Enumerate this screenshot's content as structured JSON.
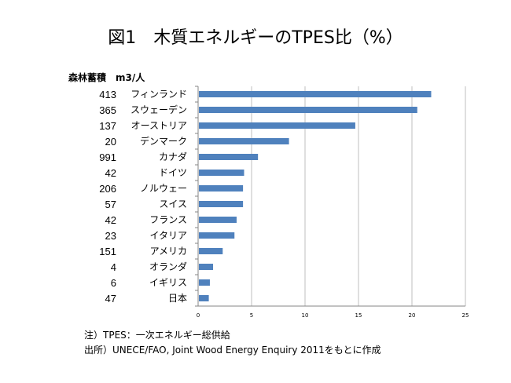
{
  "title": "図1　木質エネルギーのTPES比（%）",
  "stock_header": "森林蓄積　m3/人",
  "notes": {
    "line1": "注）TPES：一次エネルギー総供給",
    "line2": "出所）UNECE/FAO, Joint Wood Energy Enquiry  2011をもとに作成"
  },
  "chart_data": {
    "type": "bar",
    "orientation": "horizontal",
    "title": "図1　木質エネルギーのTPES比（%）",
    "xlabel": "",
    "ylabel": "",
    "xlim": [
      0,
      25
    ],
    "x_ticks": [
      0,
      5,
      10,
      15,
      20,
      25
    ],
    "grid": true,
    "categories": [
      "フィンランド",
      "スウェーデン",
      "オーストリア",
      "デンマーク",
      "カナダ",
      "ドイツ",
      "ノルウェー",
      "スイス",
      "フランス",
      "イタリア",
      "アメリカ",
      "オランダ",
      "イギリス",
      "日本"
    ],
    "values": [
      21.8,
      20.5,
      14.7,
      8.5,
      5.6,
      4.3,
      4.2,
      4.2,
      3.6,
      3.4,
      2.3,
      1.4,
      1.1,
      1.0
    ],
    "forest_stock_m3_per_capita": [
      "413",
      "365",
      "137",
      "20",
      "991",
      "42",
      "206",
      "57",
      "42",
      "23",
      "151",
      "4",
      "6",
      "47"
    ],
    "bar_color": "#4F81BD",
    "grid_color": "#BFBFBF",
    "axis_color": "#868686"
  }
}
